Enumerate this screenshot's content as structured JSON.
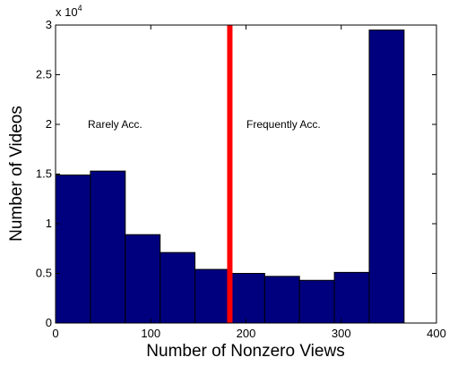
{
  "chart_data": {
    "type": "histogram",
    "xlabel": "Number of Nonzero Views",
    "ylabel": "Number of Videos",
    "y_multiplier": {
      "text": "x 10",
      "exponent": "4"
    },
    "bins": [
      0,
      36.6,
      73.2,
      109.8,
      146.4,
      183,
      219.6,
      256.2,
      292.8,
      329.4,
      366
    ],
    "values": [
      1.49,
      1.53,
      0.89,
      0.71,
      0.54,
      0.5,
      0.47,
      0.43,
      0.51,
      2.95
    ],
    "color": "#00007f",
    "xlim": [
      0,
      400
    ],
    "xticks": [
      0,
      100,
      200,
      300,
      400
    ],
    "ylim": [
      0,
      3
    ],
    "yticks": [
      0,
      0.5,
      1,
      1.5,
      2,
      2.5,
      3
    ],
    "vline": {
      "x": 183,
      "color": "#ff0000"
    },
    "annotations": [
      "Rarely Acc.",
      "Frequently Acc."
    ]
  }
}
